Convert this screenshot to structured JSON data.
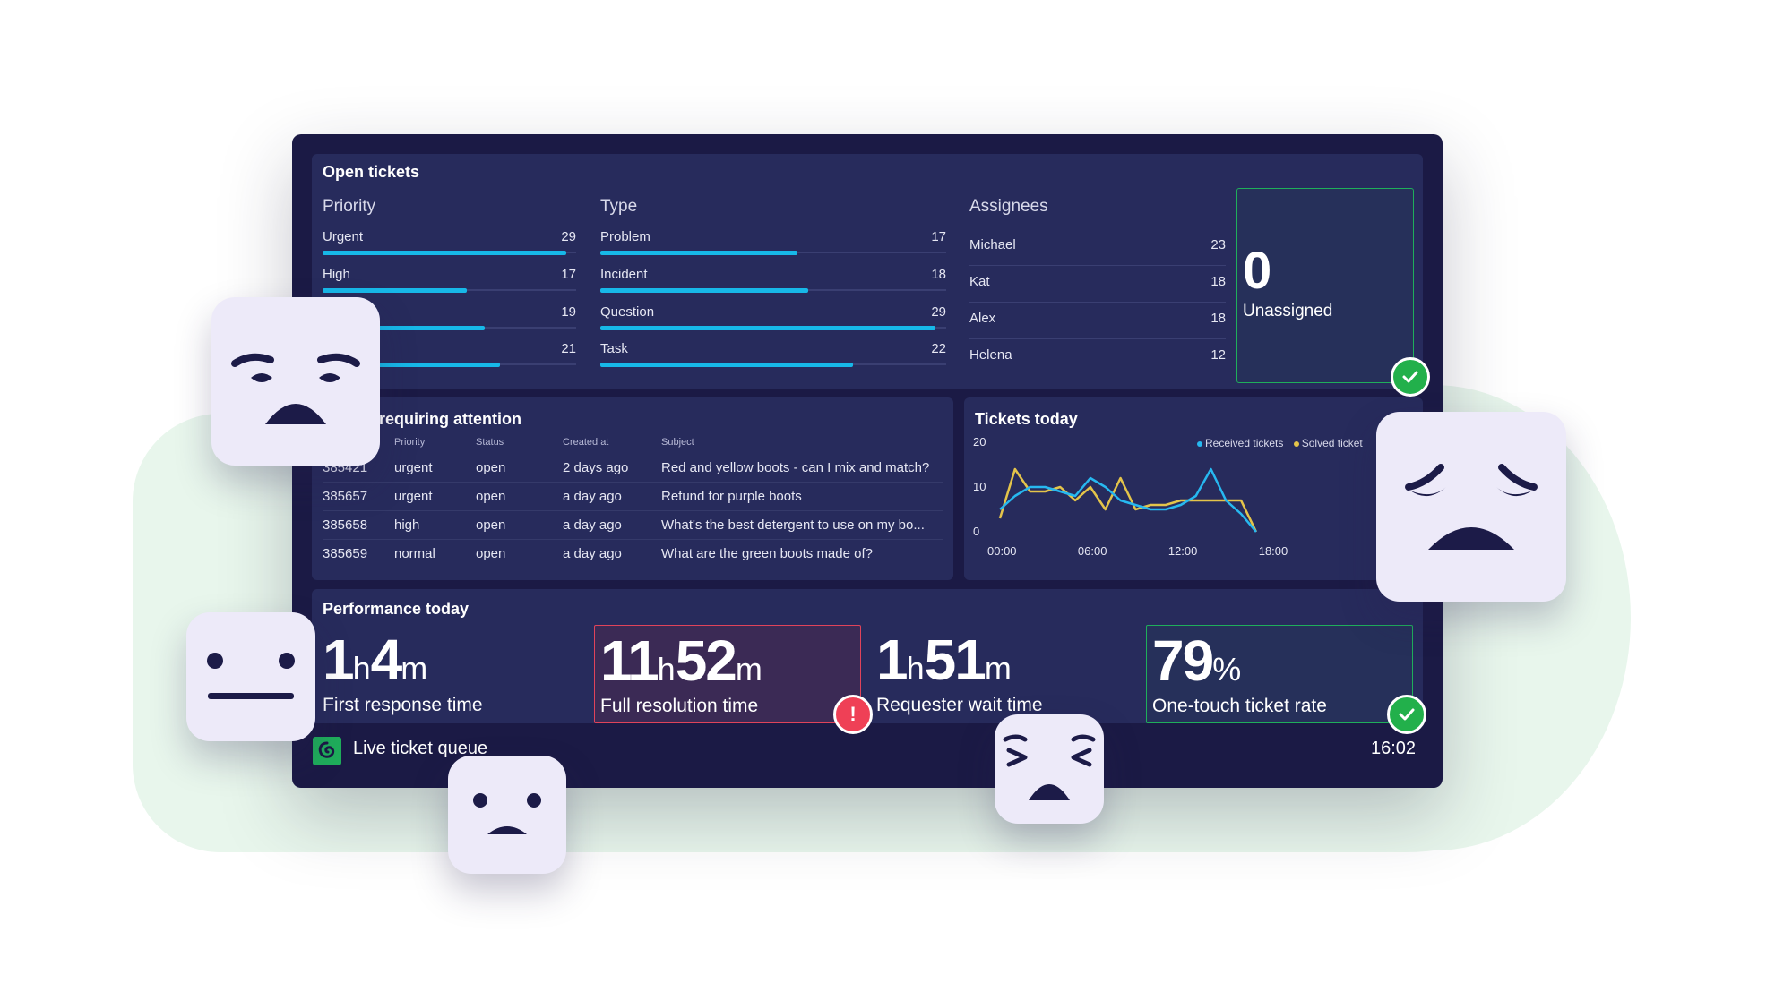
{
  "open_tickets": {
    "title": "Open tickets",
    "priority": {
      "heading": "Priority",
      "items": [
        {
          "label": "Urgent",
          "value": 29,
          "fraction": 0.96
        },
        {
          "label": "High",
          "value": 17,
          "fraction": 0.57
        },
        {
          "label": "",
          "value": 19,
          "fraction": 0.64
        },
        {
          "label": "",
          "value": 21,
          "fraction": 0.7
        }
      ]
    },
    "type": {
      "heading": "Type",
      "items": [
        {
          "label": "Problem",
          "value": 17,
          "fraction": 0.57
        },
        {
          "label": "Incident",
          "value": 18,
          "fraction": 0.6
        },
        {
          "label": "Question",
          "value": 29,
          "fraction": 0.97
        },
        {
          "label": "Task",
          "value": 22,
          "fraction": 0.73
        }
      ]
    },
    "assignees": {
      "heading": "Assignees",
      "items": [
        {
          "label": "Michael",
          "value": 23
        },
        {
          "label": "Kat",
          "value": 18
        },
        {
          "label": "Alex",
          "value": 18
        },
        {
          "label": "Helena",
          "value": 12
        }
      ]
    },
    "unassigned": {
      "value": "0",
      "label": "Unassigned"
    }
  },
  "attention": {
    "title": "requiring attention",
    "columns": [
      "Priority",
      "Status",
      "Created at",
      "Subject"
    ],
    "rows": [
      {
        "id": "385421",
        "priority": "urgent",
        "status": "open",
        "created": "2 days ago",
        "subject": "Red and yellow boots - can I mix and match?"
      },
      {
        "id": "385657",
        "priority": "urgent",
        "status": "open",
        "created": "a day ago",
        "subject": "Refund for purple boots"
      },
      {
        "id": "385658",
        "priority": "high",
        "status": "open",
        "created": "a day ago",
        "subject": "What's the best detergent to use on my bo..."
      },
      {
        "id": "385659",
        "priority": "normal",
        "status": "open",
        "created": "a day ago",
        "subject": "What are the green boots made of?"
      }
    ]
  },
  "tickets_today": {
    "title": "Tickets today",
    "legend": [
      "Received tickets",
      "Solved ticket"
    ]
  },
  "chart_data": {
    "type": "line",
    "title": "Tickets today",
    "x_ticks": [
      "00:00",
      "06:00",
      "12:00",
      "18:00"
    ],
    "y_ticks": [
      "0",
      "10",
      "20"
    ],
    "ylim": [
      0,
      20
    ],
    "xlim": [
      0,
      22
    ],
    "legend_position": "top-right",
    "series": [
      {
        "name": "Received tickets",
        "color": "#27b8f0",
        "x": [
          0,
          1,
          2,
          3,
          4,
          5,
          6,
          7,
          8,
          9,
          10,
          11,
          12,
          13,
          14,
          15,
          16,
          17
        ],
        "y": [
          5,
          8,
          10,
          10,
          9,
          8,
          12,
          10,
          7,
          6,
          5,
          5,
          6,
          8,
          14,
          7,
          4,
          0
        ]
      },
      {
        "name": "Solved ticket",
        "color": "#e4c44a",
        "x": [
          0,
          1,
          2,
          3,
          4,
          5,
          6,
          7,
          8,
          9,
          10,
          11,
          12,
          13,
          14,
          15,
          16,
          17
        ],
        "y": [
          3,
          14,
          9,
          9,
          10,
          7,
          10,
          5,
          12,
          5,
          6,
          6,
          7,
          7,
          7,
          7,
          7,
          0
        ]
      }
    ]
  },
  "performance": {
    "title": "Performance today",
    "kpis": [
      {
        "big1": "1",
        "u1": "h",
        "big2": "4",
        "u2": "m",
        "caption": "First response time"
      },
      {
        "big1": "11",
        "u1": "h",
        "big2": "52",
        "u2": "m",
        "caption": "Full resolution time"
      },
      {
        "big1": "1",
        "u1": "h",
        "big2": "51",
        "u2": "m",
        "caption": "Requester wait time"
      },
      {
        "big1": "79",
        "u1": "%",
        "big2": "",
        "u2": "",
        "caption": "One-touch ticket rate"
      }
    ]
  },
  "footer": {
    "label": "Live ticket queue",
    "clock": "16:02"
  },
  "warn_symbol": "!",
  "colors": {
    "accent": "#17b8e8",
    "ok": "#22b04b",
    "alert": "#ef4056",
    "screen": "#1b1a45",
    "panel": "#272b5c"
  }
}
